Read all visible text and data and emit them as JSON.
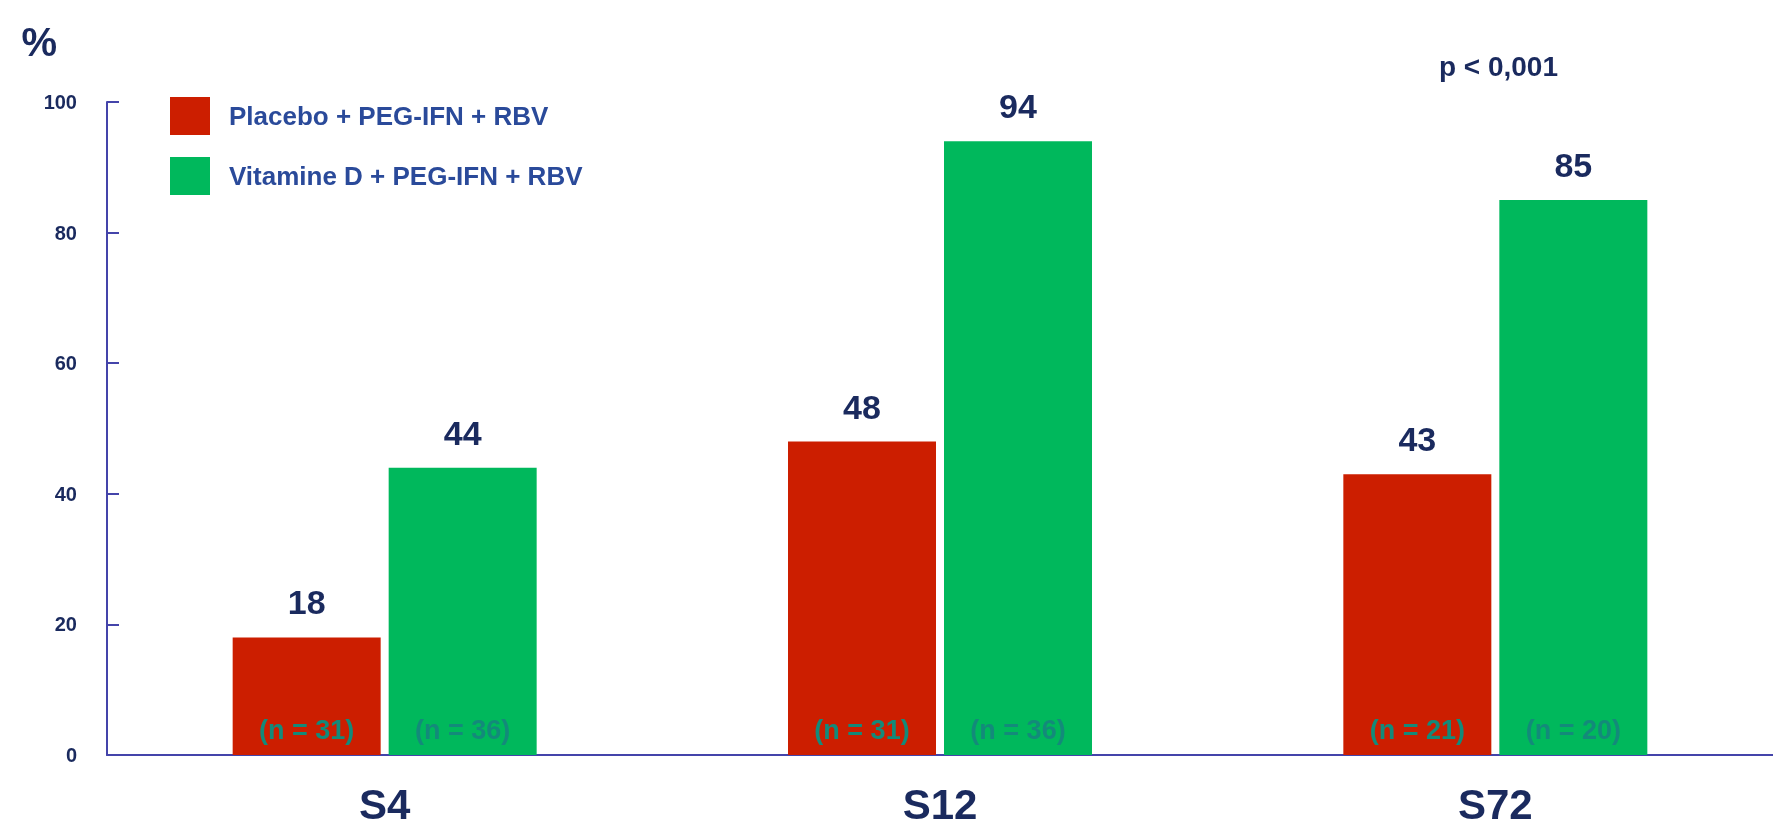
{
  "chart_data": {
    "type": "bar",
    "ylabel": "%",
    "categories": [
      "S4",
      "S12",
      "S72"
    ],
    "series": [
      {
        "name": "Placebo + PEG-IFN + RBV",
        "color": "#cc1e00",
        "values": [
          18,
          48,
          43
        ]
      },
      {
        "name": "Vitamine D + PEG-IFN + RBV",
        "color": "#00b85c",
        "values": [
          44,
          94,
          85
        ]
      }
    ],
    "ylim": [
      0,
      100
    ],
    "yticks": [
      0,
      20,
      40,
      60,
      80,
      100
    ],
    "grid": false,
    "legend": "top left",
    "data_labels": true,
    "annotations": [
      "p < 0,001",
      {
        "text": "(n = 31)",
        "x": "S4",
        "y": 0
      },
      {
        "text": "(n = 36)",
        "x": "S4",
        "y": 0
      },
      {
        "text": "(n = 31)",
        "x": "S12",
        "y": 0
      },
      {
        "text": "(n = 36)",
        "x": "S12",
        "y": 0
      },
      {
        "text": "(n = 21)",
        "x": "S72",
        "y": 0
      },
      {
        "text": "(n = 20)",
        "x": "S72",
        "y": 0
      }
    ]
  }
}
